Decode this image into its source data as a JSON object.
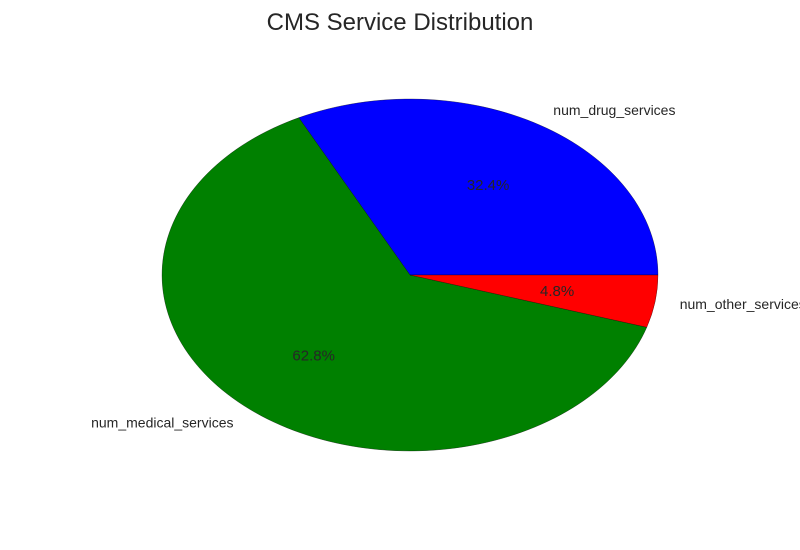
{
  "chart_data": {
    "type": "pie",
    "title": "CMS Service Distribution",
    "labels": [
      "num_drug_services",
      "num_medical_services",
      "num_other_services"
    ],
    "values": [
      32.4,
      62.8,
      4.8
    ],
    "percent_labels": [
      "32.4%",
      "62.8%",
      "4.8%"
    ],
    "colors": [
      "#0000ff",
      "#008000",
      "#ff0000"
    ],
    "start_angle_deg": 0,
    "direction": "counterclockwise",
    "legend": "none"
  }
}
